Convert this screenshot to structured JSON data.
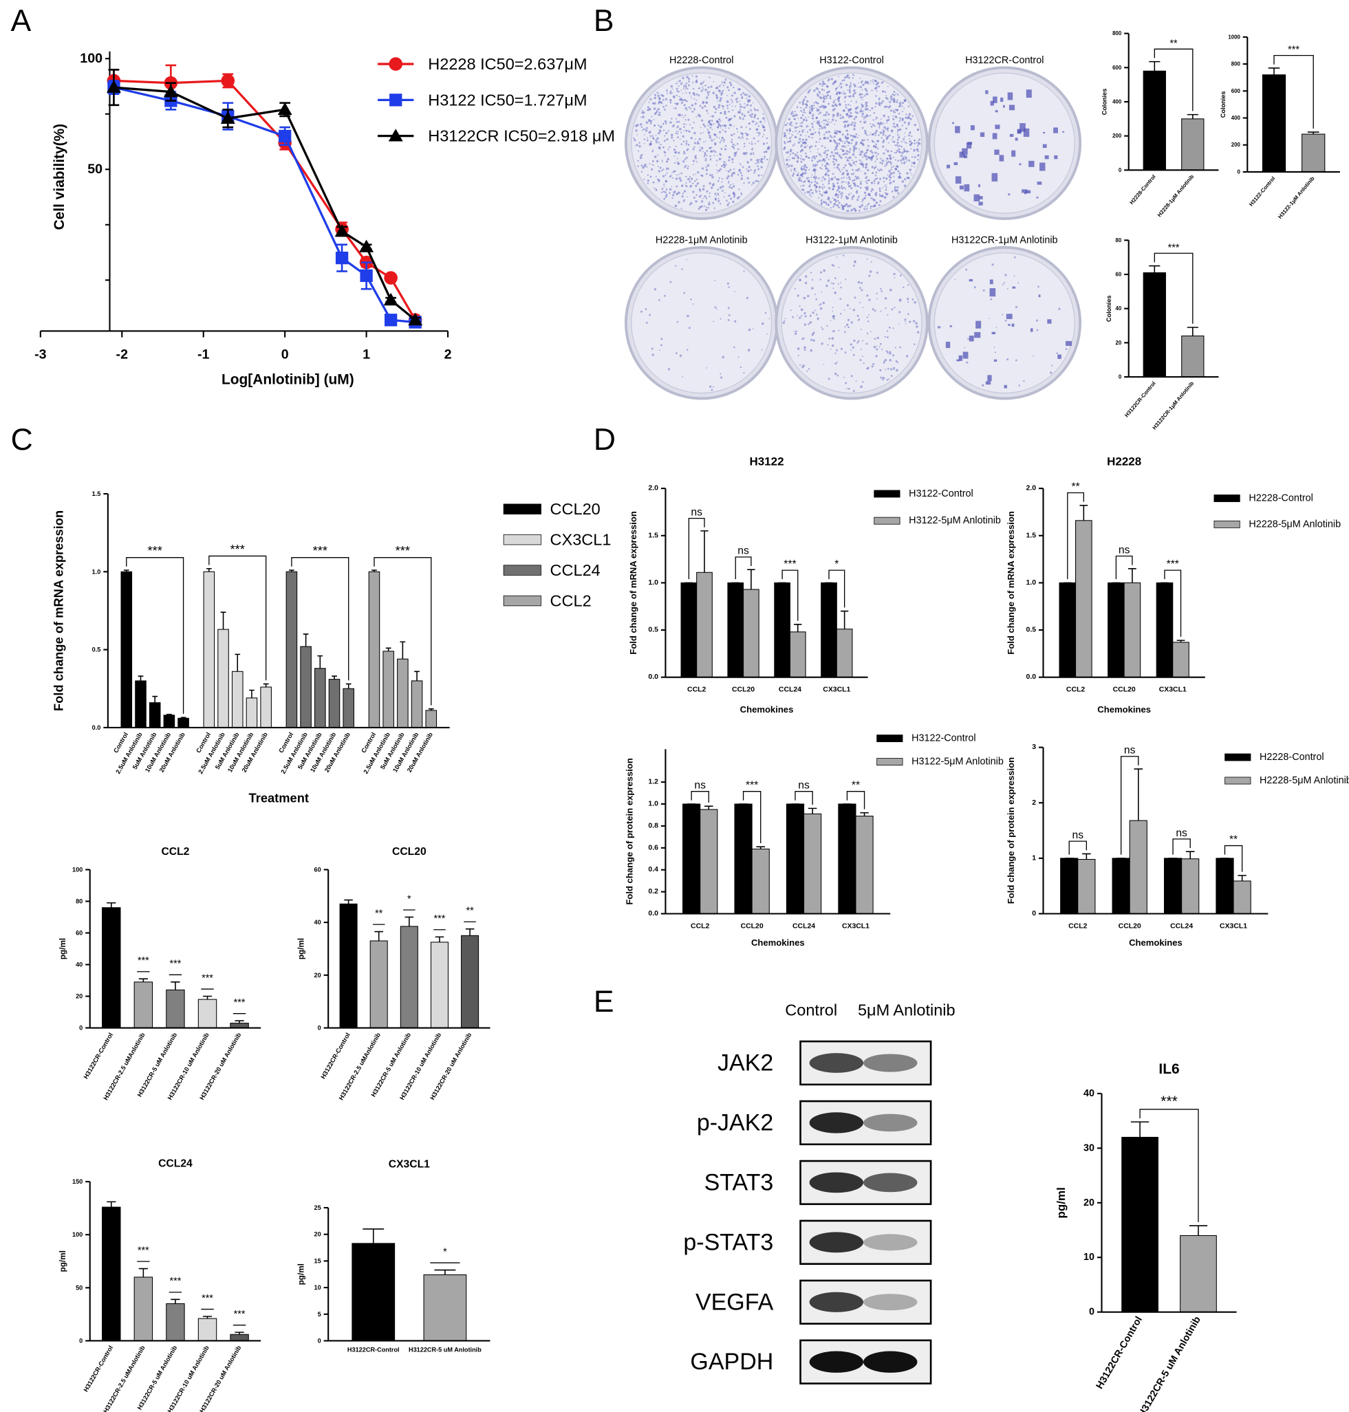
{
  "panel_labels": [
    "A",
    "B",
    "C",
    "D",
    "E"
  ],
  "colony_plates": [
    "H2228-Control",
    "H3122-Control",
    "H3122CR-Control",
    "H2228-1μM Anlotinib",
    "H3122-1μM Anlotinib",
    "H3122CR-1μM Anlotinib"
  ],
  "western_blot": {
    "conditions": [
      "Control",
      "5μM Anlotinib"
    ],
    "proteins": [
      "JAK2",
      "p-JAK2",
      "STAT3",
      "p-STAT3",
      "VEGFA",
      "GAPDH"
    ]
  },
  "chart_data": [
    {
      "type": "line",
      "xlabel": "Log[Anlotinib] (uM)",
      "ylabel": "Cell viability(%)",
      "x": [
        -2.1,
        -1.4,
        -0.7,
        0,
        0.7,
        1,
        1.3,
        1.6
      ],
      "xlim": [
        -3,
        2
      ],
      "xticks": [
        -3,
        -2,
        -1,
        0,
        1,
        2
      ],
      "ylim": [
        -23,
        100
      ],
      "yticks": [
        50,
        100
      ],
      "minor_yticks": [
        0,
        25,
        75
      ],
      "series": [
        {
          "name": "H2228 IC50=2.637μM",
          "color": "#e8191c",
          "marker": "circle",
          "values": [
            90,
            89,
            90,
            62,
            23,
            8,
            1,
            -18
          ],
          "errors": [
            5,
            8,
            3,
            3,
            3,
            2,
            1,
            1
          ]
        },
        {
          "name": "H3122 IC50=1.727μM",
          "color": "#1f3de8",
          "marker": "square",
          "values": [
            87,
            81,
            74,
            65,
            10,
            2,
            -18,
            -19
          ],
          "errors": [
            3,
            4,
            6,
            4,
            6,
            6,
            1,
            1
          ]
        },
        {
          "name": "H3122CR IC50=2.918 μM",
          "color": "#000000",
          "marker": "triangle",
          "values": [
            87,
            85,
            73,
            77,
            22,
            15,
            -9,
            -18
          ],
          "errors": [
            8,
            4,
            4,
            3,
            2,
            1,
            1,
            1
          ]
        }
      ]
    },
    {
      "type": "bar",
      "ylabel": "Colonies",
      "categories": [
        "H2228-Control",
        "H2228-1μM Anlotinib"
      ],
      "series": [
        {
          "colors": [
            "#000000",
            "#999999"
          ],
          "values": [
            580,
            300
          ],
          "errors": [
            55,
            25
          ]
        }
      ],
      "ylim": [
        0,
        800
      ],
      "yticks": [
        0,
        200,
        400,
        600,
        800
      ],
      "significance": "**"
    },
    {
      "type": "bar",
      "ylabel": "Colonies",
      "categories": [
        "H3122-Control",
        "H3122-1μM Anlotinib"
      ],
      "series": [
        {
          "colors": [
            "#000000",
            "#999999"
          ],
          "values": [
            720,
            280
          ],
          "errors": [
            50,
            15
          ]
        }
      ],
      "ylim": [
        0,
        1000
      ],
      "yticks": [
        0,
        200,
        400,
        600,
        800,
        1000
      ],
      "significance": "***"
    },
    {
      "type": "bar",
      "ylabel": "Colonies",
      "categories": [
        "H3122CR-Control",
        "H3122CR-1μM Anlotinib"
      ],
      "series": [
        {
          "colors": [
            "#000000",
            "#999999"
          ],
          "values": [
            61,
            24
          ],
          "errors": [
            4,
            5
          ]
        }
      ],
      "ylim": [
        0,
        80
      ],
      "yticks": [
        0,
        20,
        40,
        60,
        80
      ],
      "significance": "***"
    },
    {
      "type": "bar",
      "grouping": "series",
      "ylabel": "Fold change of mRNA  expression",
      "xlabel": "Treatment",
      "categories": [
        "Control",
        "2.5uM Anlotinib",
        "5uM Anlotinib",
        "10uM Anlotinib",
        "20uM Anlotinib"
      ],
      "series": [
        {
          "name": "CCL20",
          "color": "#000000",
          "values": [
            1.0,
            0.3,
            0.16,
            0.08,
            0.06
          ],
          "errors": [
            0.01,
            0.03,
            0.04,
            0.005,
            0.005
          ]
        },
        {
          "name": "CX3CL1",
          "color": "#d9d9d9",
          "values": [
            1.0,
            0.63,
            0.36,
            0.19,
            0.26
          ],
          "errors": [
            0.02,
            0.11,
            0.11,
            0.05,
            0.02
          ]
        },
        {
          "name": "CCL24",
          "color": "#707070",
          "values": [
            1.0,
            0.52,
            0.38,
            0.31,
            0.25
          ],
          "errors": [
            0.01,
            0.08,
            0.08,
            0.02,
            0.03
          ]
        },
        {
          "name": "CCL2",
          "color": "#a6a6a6",
          "values": [
            1.0,
            0.49,
            0.44,
            0.3,
            0.11
          ],
          "errors": [
            0.01,
            0.02,
            0.11,
            0.06,
            0.01
          ]
        }
      ],
      "ylim": [
        0,
        1.5
      ],
      "yticks": [
        {
          "value": 0,
          "label": "0.0"
        },
        0.5,
        {
          "value": 1,
          "label": "1.0"
        },
        1.5
      ],
      "significance": [
        "***",
        "***",
        "***",
        "***"
      ],
      "significance_style": "bracket"
    },
    {
      "type": "bar",
      "title": "CCL2",
      "ylabel": "pg/ml",
      "categories": [
        "H3122CR-Control",
        "H3122CR-2.5 uMAnlotinib",
        "H3122CR-5 uM Anlotinib",
        "H3122CR-10 uM Anlotinib",
        "H3122CR-20 uM Anlotinib"
      ],
      "series": [
        {
          "colors": [
            "#000000",
            "#a6a6a6",
            "#808080",
            "#d9d9d9",
            "#595959"
          ],
          "values": [
            76,
            29,
            24,
            18,
            3
          ],
          "errors": [
            3,
            2,
            5,
            2,
            1.5
          ]
        }
      ],
      "ylim": [
        0,
        100
      ],
      "yticks": [
        0,
        20,
        40,
        60,
        80,
        100
      ],
      "significance": [
        null,
        "***",
        "***",
        "***",
        "***"
      ],
      "significance_style": "mark"
    },
    {
      "type": "bar",
      "title": "CCL20",
      "ylabel": "pg/ml",
      "categories": [
        "H3122CR-Control",
        "H3122CR-2.5 uMAnlotinib",
        "H3122CR-5 uM Anlotinib",
        "H3122CR-10 uM Anlotinib",
        "H3122CR-20 uM Anlotinib"
      ],
      "series": [
        {
          "colors": [
            "#000000",
            "#a6a6a6",
            "#808080",
            "#d9d9d9",
            "#595959"
          ],
          "values": [
            47,
            33,
            38.5,
            32.5,
            35
          ],
          "errors": [
            1.5,
            3.5,
            3.5,
            2,
            2.5
          ]
        }
      ],
      "ylim": [
        0,
        60
      ],
      "yticks": [
        0,
        20,
        40,
        60
      ],
      "significance": [
        null,
        "**",
        "*",
        "***",
        "**"
      ],
      "significance_style": "mark"
    },
    {
      "type": "bar",
      "title": "CCL24",
      "ylabel": "pg/ml",
      "categories": [
        "H3122CR-Control",
        "H3122CR-2.5 uMAnlotinib",
        "H3122CR-5 uM Anlotinib",
        "H3122CR-10 uM Anlotinib",
        "H3122CR-20 uM Anlotinib"
      ],
      "series": [
        {
          "colors": [
            "#000000",
            "#a6a6a6",
            "#808080",
            "#d9d9d9",
            "#595959"
          ],
          "values": [
            126,
            60,
            35,
            21,
            6
          ],
          "errors": [
            5,
            8,
            4,
            2,
            2
          ]
        }
      ],
      "ylim": [
        0,
        150
      ],
      "yticks": [
        0,
        50,
        100,
        150
      ],
      "significance": [
        null,
        "***",
        "***",
        "***",
        "***"
      ],
      "significance_style": "mark"
    },
    {
      "type": "bar",
      "title": "CX3CL1",
      "ylabel": "pg/ml",
      "categories": [
        "H3122CR-Control",
        "H3122CR-5 uM Anlotinib"
      ],
      "series": [
        {
          "colors": [
            "#000000",
            "#a6a6a6"
          ],
          "values": [
            18.3,
            12.4
          ],
          "errors": [
            2.7,
            0.9
          ]
        }
      ],
      "ylim": [
        0,
        25
      ],
      "yticks": [
        0,
        5,
        10,
        15,
        20,
        25
      ],
      "significance": [
        null,
        "*"
      ],
      "significance_style": "mark"
    },
    {
      "type": "bar",
      "title": "H3122",
      "xlabel": "Chemokines",
      "ylabel": "Fold change of mRNA  expression",
      "categories": [
        "CCL2",
        "CCL20",
        "CCL24",
        "CX3CL1"
      ],
      "series": [
        {
          "name": "H3122-Control",
          "color": "#000000",
          "values": [
            1,
            1,
            1,
            1
          ],
          "errors": [
            0,
            0,
            0,
            0
          ]
        },
        {
          "name": "H3122-5μM Anlotinib",
          "color": "#a6a6a6",
          "values": [
            1.11,
            0.93,
            0.48,
            0.51
          ],
          "errors": [
            0.44,
            0.21,
            0.08,
            0.19
          ]
        }
      ],
      "ylim": [
        0,
        2
      ],
      "yticks": [
        {
          "value": 0,
          "label": "0.0"
        },
        0.5,
        {
          "value": 1,
          "label": "1.0"
        },
        1.5,
        {
          "value": 2,
          "label": "2.0"
        }
      ],
      "significance": [
        "ns",
        "ns",
        "***",
        "*"
      ],
      "significance_style": "bracket"
    },
    {
      "type": "bar",
      "title": "H2228",
      "xlabel": "Chemokines",
      "ylabel": "Fold change of mRNA  expression",
      "categories": [
        "CCL2",
        "CCL20",
        "CX3CL1"
      ],
      "series": [
        {
          "name": "H2228-Control",
          "color": "#000000",
          "values": [
            1,
            1,
            1
          ],
          "errors": [
            0,
            0,
            0
          ]
        },
        {
          "name": "H2228-5μM Anlotinib",
          "color": "#a6a6a6",
          "values": [
            1.66,
            1.0,
            0.37
          ],
          "errors": [
            0.16,
            0.15,
            0.02
          ]
        }
      ],
      "ylim": [
        0,
        2
      ],
      "yticks": [
        {
          "value": 0,
          "label": "0.0"
        },
        0.5,
        {
          "value": 1,
          "label": "1.0"
        },
        1.5,
        {
          "value": 2,
          "label": "2.0"
        }
      ],
      "significance": [
        "**",
        "ns",
        "***"
      ],
      "significance_style": "bracket"
    },
    {
      "type": "bar",
      "xlabel": "Chemokines",
      "ylabel": "Fold change of protein  expression",
      "categories": [
        "CCL2",
        "CCL20",
        "CCL24",
        "CX3CL1"
      ],
      "series": [
        {
          "name": "H3122-Control",
          "color": "#000000",
          "values": [
            1,
            1,
            1,
            1
          ],
          "errors": [
            0,
            0,
            0,
            0
          ]
        },
        {
          "name": "H3122-5μM Anlotinib",
          "color": "#a6a6a6",
          "values": [
            0.95,
            0.59,
            0.91,
            0.89
          ],
          "errors": [
            0.03,
            0.02,
            0.05,
            0.03
          ]
        }
      ],
      "ylim": [
        0,
        1.5
      ],
      "yticks": [
        {
          "value": 0,
          "label": "0.0"
        },
        0.2,
        0.4,
        0.6,
        0.8,
        {
          "value": 1,
          "label": "1.0"
        },
        1.2
      ],
      "significance": [
        "ns",
        "***",
        "ns",
        "**"
      ],
      "significance_style": "bracket"
    },
    {
      "type": "bar",
      "xlabel": "Chemokines",
      "ylabel": "Fold change of protein  expression",
      "categories": [
        "CCL2",
        "CCL20",
        "CCL24",
        "CX3CL1"
      ],
      "series": [
        {
          "name": "H2228-Control",
          "color": "#000000",
          "values": [
            1,
            1,
            1,
            1
          ],
          "errors": [
            0,
            0,
            0,
            0
          ]
        },
        {
          "name": "H2228-5μM Anlotinib",
          "color": "#a6a6a6",
          "values": [
            0.98,
            1.68,
            0.99,
            0.59
          ],
          "errors": [
            0.1,
            0.93,
            0.13,
            0.1
          ]
        }
      ],
      "ylim": [
        0,
        3
      ],
      "yticks": [
        0,
        1,
        2,
        3
      ],
      "significance": [
        "ns",
        "ns",
        "ns",
        "**"
      ],
      "significance_style": "bracket"
    },
    {
      "type": "bar",
      "title": "IL6",
      "ylabel": "pg/ml",
      "categories": [
        "H3122CR-Control",
        "H3122CR-5 uM Anlotinib"
      ],
      "series": [
        {
          "colors": [
            "#000000",
            "#a6a6a6"
          ],
          "values": [
            32,
            14
          ],
          "errors": [
            2.8,
            1.8
          ]
        }
      ],
      "ylim": [
        0,
        40
      ],
      "yticks": [
        0,
        10,
        20,
        30,
        40
      ],
      "significance": "***"
    }
  ]
}
